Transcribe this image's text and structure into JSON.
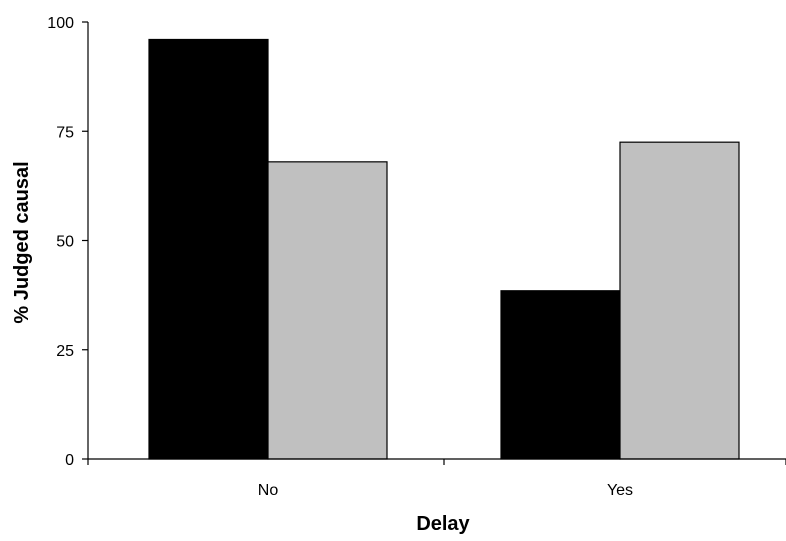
{
  "chart_data": {
    "type": "bar",
    "title": "",
    "xlabel": "Delay",
    "ylabel": "% Judged causal",
    "categories": [
      "No",
      "Yes"
    ],
    "series": [
      {
        "values": [
          96,
          38.5
        ],
        "color": "#000000"
      },
      {
        "values": [
          68,
          72.5
        ],
        "color": "#c0c0c0"
      }
    ],
    "ylim": [
      0,
      100
    ],
    "yticks": [
      0,
      25,
      50,
      75,
      100
    ],
    "grid": false,
    "legend": "none"
  }
}
